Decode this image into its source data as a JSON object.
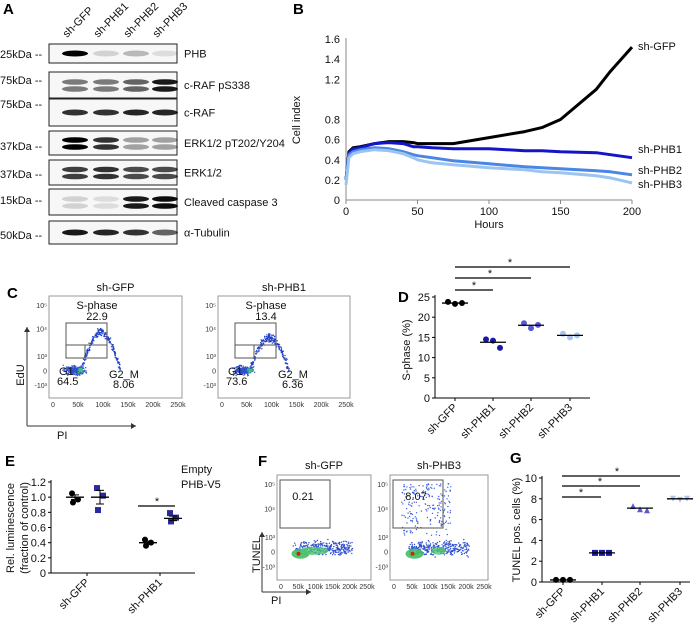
{
  "colors": {
    "sh-GFP": "#000000",
    "sh-PHB1": "#1a1aa0",
    "sh-PHB2": "#5a5ad6",
    "sh-PHB3": "#a8c4ee",
    "B_sh-PHB1": "#1515c8",
    "B_sh-PHB2": "#4a86e6",
    "B_sh-PHB3": "#9cc4f0",
    "PHB-V5": "#2a2a9c"
  },
  "panels": {
    "A": "A",
    "B": "B",
    "C": "C",
    "D": "D",
    "E": "E",
    "F": "F",
    "G": "G"
  },
  "panel_a": {
    "lanes": [
      "sh-GFP",
      "sh-PHB1",
      "sh-PHB2",
      "sh-PHB3"
    ],
    "rows": [
      {
        "marker": "25kDa --",
        "protein": "PHB"
      },
      {
        "marker": "75kDa --",
        "protein": "c-RAF pS338"
      },
      {
        "marker": "75kDa --",
        "protein": "c-RAF"
      },
      {
        "marker": "37kDa --",
        "protein": "ERK1/2 pT202/Y204"
      },
      {
        "marker": "37kDa --",
        "protein": "ERK1/2"
      },
      {
        "marker": "15kDa --",
        "protein": "Cleaved caspase 3"
      },
      {
        "marker": "50kDa --",
        "protein": "α-Tubulin"
      }
    ]
  },
  "panel_c": {
    "plots": [
      {
        "title": "sh-GFP",
        "s_phase_label": "S-phase",
        "s_phase": "22.9",
        "g1_label": "G1",
        "g1": "64.5",
        "g2m_label": "G2_M",
        "g2m": "8.06"
      },
      {
        "title": "sh-PHB1",
        "s_phase_label": "S-phase",
        "s_phase": "13.4",
        "g1_label": "G1",
        "g1": "73.6",
        "g2m_label": "G2_M",
        "g2m": "6.36"
      }
    ],
    "y_ticks": [
      "10⁵",
      "10⁴",
      "10³",
      "0",
      "-10³"
    ],
    "x_ticks": [
      "0",
      "50k",
      "100k",
      "150k",
      "200k",
      "250k"
    ],
    "ylabel": "EdU",
    "xlabel": "PI"
  },
  "panel_f": {
    "plots": [
      {
        "title": "sh-GFP",
        "value": "0.21"
      },
      {
        "title": "sh-PHB3",
        "value": "8.07"
      }
    ],
    "y_ticks": [
      "10⁵",
      "10⁴",
      "10³",
      "0",
      "-10³"
    ],
    "x_ticks": [
      "0",
      "50k",
      "100k",
      "150k",
      "200k",
      "250k"
    ],
    "ylabel": "TUNEL",
    "xlabel": "PI"
  },
  "chart_data": [
    {
      "panel": "B",
      "type": "line",
      "xlabel": "Hours",
      "ylabel": "Cell index",
      "xlim": [
        0,
        200
      ],
      "ylim": [
        0,
        1.6
      ],
      "x_ticks": [
        0,
        50,
        100,
        150,
        200
      ],
      "y_ticks": [
        0,
        0.2,
        0.4,
        0.6,
        0.8,
        1.2,
        1.4,
        1.6
      ],
      "x": [
        0,
        2,
        5,
        10,
        20,
        30,
        40,
        47,
        50,
        60,
        75,
        100,
        125,
        137,
        150,
        175,
        185,
        200
      ],
      "series": [
        {
          "name": "sh-GFP",
          "values": [
            0.2,
            0.48,
            0.52,
            0.53,
            0.56,
            0.58,
            0.58,
            0.57,
            0.56,
            0.56,
            0.56,
            0.62,
            0.68,
            0.72,
            0.8,
            1.1,
            1.28,
            1.52
          ]
        },
        {
          "name": "sh-PHB1",
          "values": [
            0.2,
            0.47,
            0.51,
            0.52,
            0.56,
            0.57,
            0.56,
            0.53,
            0.53,
            0.52,
            0.51,
            0.51,
            0.49,
            0.49,
            0.48,
            0.47,
            0.45,
            0.42
          ]
        },
        {
          "name": "sh-PHB2",
          "values": [
            0.2,
            0.45,
            0.48,
            0.5,
            0.52,
            0.51,
            0.48,
            0.45,
            0.44,
            0.42,
            0.39,
            0.36,
            0.33,
            0.32,
            0.31,
            0.29,
            0.28,
            0.25
          ]
        },
        {
          "name": "sh-PHB3",
          "values": [
            0.15,
            0.42,
            0.46,
            0.48,
            0.5,
            0.49,
            0.46,
            0.42,
            0.4,
            0.37,
            0.35,
            0.32,
            0.3,
            0.28,
            0.27,
            0.24,
            0.22,
            0.17
          ]
        }
      ]
    },
    {
      "panel": "D",
      "type": "scatter",
      "ylabel": "S-phase (%)",
      "ylim": [
        0,
        25
      ],
      "y_ticks": [
        0,
        5,
        10,
        15,
        20,
        25
      ],
      "categories": [
        "sh-GFP",
        "sh-PHB1",
        "sh-PHB2",
        "sh-PHB3"
      ],
      "points": [
        [
          23.8,
          23.3,
          23.5
        ],
        [
          14.5,
          14.2,
          12.4
        ],
        [
          18.5,
          17.3,
          18.1
        ],
        [
          15.9,
          15.0,
          15.5
        ]
      ],
      "means": [
        23.5,
        13.8,
        18.0,
        15.5
      ],
      "significance": [
        {
          "from": "sh-GFP",
          "to": "sh-PHB1",
          "label": "*"
        },
        {
          "from": "sh-GFP",
          "to": "sh-PHB2",
          "label": "*"
        },
        {
          "from": "sh-GFP",
          "to": "sh-PHB3",
          "label": "*"
        }
      ]
    },
    {
      "panel": "E",
      "type": "scatter",
      "ylabel": "Rel. luminescence",
      "ylabel2": "(fraction of control)",
      "ylim": [
        0,
        1.2
      ],
      "y_ticks": [
        "0",
        "0.2",
        "0.4",
        "0.6",
        "0.8",
        "1.0",
        "1.2"
      ],
      "categories": [
        "sh-GFP",
        "sh-PHB1"
      ],
      "series": [
        {
          "name": "Empty",
          "points": [
            [
              1.05,
              0.97,
              0.93
            ],
            [
              0.44,
              0.4,
              0.36
            ]
          ],
          "means": [
            1.0,
            0.4
          ],
          "sem": [
            0.03,
            0.02
          ]
        },
        {
          "name": "PHB-V5",
          "points": [
            [
              1.12,
              1.02,
              0.83
            ],
            [
              0.79,
              0.73,
              0.68
            ]
          ],
          "means": [
            1.0,
            0.72
          ],
          "sem": [
            0.09,
            0.03
          ]
        }
      ],
      "significance": [
        {
          "category": "sh-PHB1",
          "label": "*"
        }
      ],
      "legend": "top-right"
    },
    {
      "panel": "G",
      "type": "scatter",
      "ylabel": "TUNEL pos. cells (%)",
      "ylim": [
        0,
        10
      ],
      "y_ticks": [
        0,
        2,
        4,
        6,
        8,
        10
      ],
      "categories": [
        "sh-GFP",
        "sh-PHB1",
        "sh-PHB2",
        "sh-PHB3"
      ],
      "points": [
        [
          0.2,
          0.2,
          0.2
        ],
        [
          2.8,
          2.8,
          2.8
        ],
        [
          7.3,
          7.0,
          6.9
        ],
        [
          8.0,
          7.9,
          8.0
        ]
      ],
      "means": [
        0.2,
        2.8,
        7.1,
        8.0
      ],
      "significance": [
        {
          "from": "sh-GFP",
          "to": "sh-PHB1",
          "label": "*"
        },
        {
          "from": "sh-GFP",
          "to": "sh-PHB2",
          "label": "*"
        },
        {
          "from": "sh-GFP",
          "to": "sh-PHB3",
          "label": "*"
        }
      ]
    }
  ]
}
